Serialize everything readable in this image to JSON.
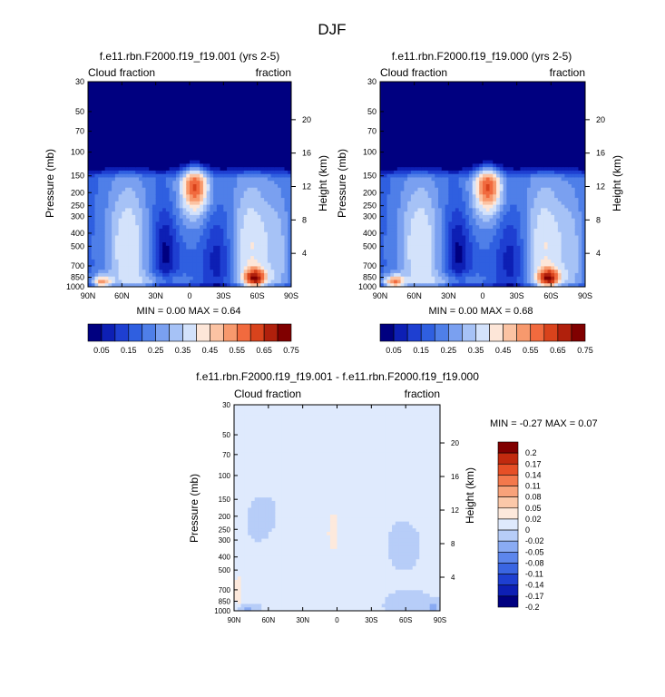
{
  "figure_title": "DJF",
  "chart_data": [
    {
      "type": "heatmap",
      "title": "f.e11.rbn.F2000.f19_f19.001 (yrs 2-5)",
      "left_label": "Cloud fraction",
      "right_label": "fraction",
      "xlabel": "",
      "ylabel": "Pressure (mb)",
      "ylabel_right": "Height (km)",
      "x_ticks": [
        "90N",
        "60N",
        "30N",
        "0",
        "30S",
        "60S",
        "90S"
      ],
      "y_ticks": [
        "30",
        "50",
        "70",
        "100",
        "150",
        "200",
        "250",
        "300",
        "400",
        "500",
        "700",
        "850",
        "1000"
      ],
      "y_right_ticks": [
        "20",
        "16",
        "12",
        "8",
        "4"
      ],
      "stats": "MIN =   0.00   MAX =   0.64",
      "min": 0.0,
      "max": 0.64,
      "colorbar_labels": [
        "0.05",
        "0.15",
        "0.25",
        "0.35",
        "0.45",
        "0.55",
        "0.65",
        "0.75"
      ]
    },
    {
      "type": "heatmap",
      "title": "f.e11.rbn.F2000.f19_f19.000 (yrs 2-5)",
      "left_label": "Cloud fraction",
      "right_label": "fraction",
      "xlabel": "",
      "ylabel": "Pressure (mb)",
      "ylabel_right": "Height (km)",
      "x_ticks": [
        "90N",
        "60N",
        "30N",
        "0",
        "30S",
        "60S",
        "90S"
      ],
      "y_ticks": [
        "30",
        "50",
        "70",
        "100",
        "150",
        "200",
        "250",
        "300",
        "400",
        "500",
        "700",
        "850",
        "1000"
      ],
      "y_right_ticks": [
        "20",
        "16",
        "12",
        "8",
        "4"
      ],
      "stats": "MIN =   0.00   MAX =   0.68",
      "min": 0.0,
      "max": 0.68,
      "colorbar_labels": [
        "0.05",
        "0.15",
        "0.25",
        "0.35",
        "0.45",
        "0.55",
        "0.65",
        "0.75"
      ]
    },
    {
      "type": "heatmap",
      "title": "f.e11.rbn.F2000.f19_f19.001 - f.e11.rbn.F2000.f19_f19.000",
      "left_label": "Cloud fraction",
      "right_label": "fraction",
      "xlabel": "",
      "ylabel": "Pressure (mb)",
      "ylabel_right": "Height (km)",
      "x_ticks": [
        "90N",
        "60N",
        "30N",
        "0",
        "30S",
        "60S",
        "90S"
      ],
      "y_ticks": [
        "30",
        "50",
        "70",
        "100",
        "150",
        "200",
        "250",
        "300",
        "400",
        "500",
        "700",
        "850",
        "1000"
      ],
      "y_right_ticks": [
        "20",
        "16",
        "12",
        "8",
        "4"
      ],
      "stats": "MIN =  -0.27   MAX =   0.07",
      "min": -0.27,
      "max": 0.07,
      "colorbar_labels": [
        "0.2",
        "0.17",
        "0.14",
        "0.11",
        "0.08",
        "0.05",
        "0.02",
        "0",
        "-0.02",
        "-0.05",
        "-0.08",
        "-0.11",
        "-0.14",
        "-0.17",
        "-0.2"
      ]
    }
  ],
  "colors": {
    "seq_palette": [
      "#000080",
      "#0d1fb4",
      "#1e3fd1",
      "#2f5fe0",
      "#4f7fe8",
      "#7aa0f0",
      "#a6c2f6",
      "#d3e2fb",
      "#fde6d8",
      "#fbc3a3",
      "#f7996d",
      "#f16a3e",
      "#d9431c",
      "#b0200c",
      "#800000"
    ],
    "div_palette": [
      "#000080",
      "#0d1fb4",
      "#1e3fd1",
      "#3a65e2",
      "#5d86ec",
      "#8aabf3",
      "#b7cdf8",
      "#dfeafd",
      "#fde9dc",
      "#fbc8a9",
      "#f8a27a",
      "#f3784c",
      "#e64f26",
      "#c12a0e",
      "#800000"
    ]
  }
}
